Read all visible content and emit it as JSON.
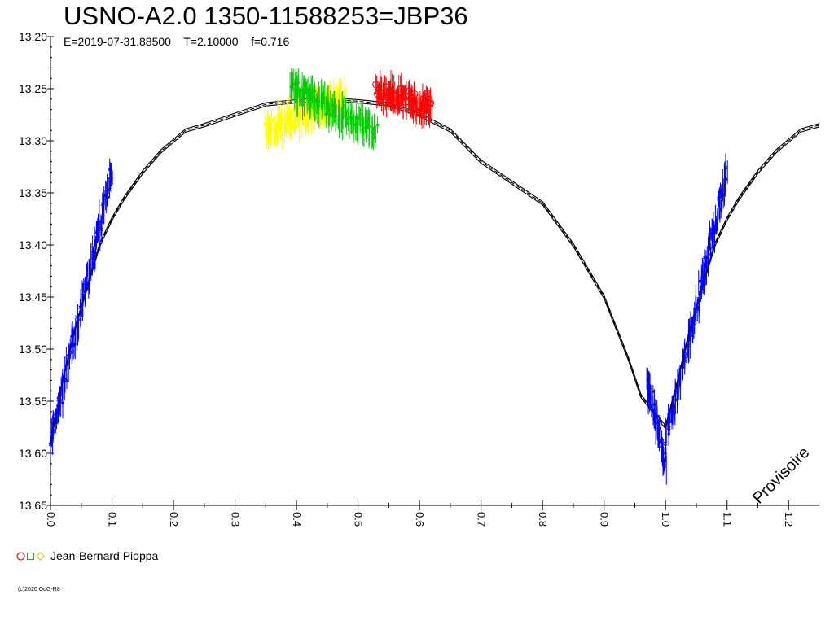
{
  "chart_data": {
    "type": "scatter",
    "title": "USNO-A2.0 1350-11588253=JBP36",
    "subtitle": "E=2019-07-31.88500    T=2.10000    f=0.716",
    "x_ticks": [
      "0.0",
      "0.1",
      "0.2",
      "0.3",
      "0.4",
      "0.5",
      "0.6",
      "0.7",
      "0.8",
      "0.9",
      "1.0",
      "1.1",
      "1.2"
    ],
    "y_ticks": [
      "13.20",
      "13.25",
      "13.30",
      "13.35",
      "13.40",
      "13.45",
      "13.50",
      "13.55",
      "13.60",
      "13.65"
    ],
    "xlim": [
      0.0,
      1.25
    ],
    "ylim": [
      13.2,
      13.65
    ],
    "y_inverted": true,
    "model_curve": {
      "x": [
        0.0,
        0.02,
        0.04,
        0.06,
        0.08,
        0.1,
        0.12,
        0.15,
        0.18,
        0.2,
        0.22,
        0.25,
        0.3,
        0.35,
        0.4,
        0.45,
        0.5,
        0.55,
        0.6,
        0.65,
        0.7,
        0.75,
        0.8,
        0.85,
        0.88,
        0.9,
        0.92,
        0.94,
        0.96,
        0.98,
        1.0,
        1.02,
        1.04,
        1.06,
        1.08,
        1.1,
        1.12,
        1.15,
        1.18,
        1.2,
        1.22,
        1.25
      ],
      "y": [
        13.59,
        13.53,
        13.48,
        13.44,
        13.4,
        13.375,
        13.355,
        13.33,
        13.31,
        13.3,
        13.29,
        13.285,
        13.275,
        13.265,
        13.262,
        13.26,
        13.262,
        13.265,
        13.275,
        13.29,
        13.32,
        13.34,
        13.36,
        13.4,
        13.43,
        13.45,
        13.48,
        13.51,
        13.545,
        13.56,
        13.575,
        13.53,
        13.48,
        13.44,
        13.4,
        13.375,
        13.355,
        13.33,
        13.31,
        13.3,
        13.29,
        13.285
      ]
    },
    "series": [
      {
        "name": "",
        "color": "#0000ff",
        "marker": "x",
        "segments": [
          [
            0.0,
            0.1,
            13.59,
            13.33
          ],
          [
            0.97,
            1.0,
            13.53,
            13.61
          ],
          [
            1.0,
            1.1,
            13.59,
            13.33
          ]
        ]
      },
      {
        "name": "",
        "color": "#ffff00",
        "marker": "diamond",
        "segments": [
          [
            0.35,
            0.48,
            13.29,
            13.26
          ]
        ]
      },
      {
        "name": "",
        "color": "#00cc00",
        "marker": "square",
        "segments": [
          [
            0.39,
            0.53,
            13.25,
            13.29
          ]
        ]
      },
      {
        "name": "",
        "color": "#ff0000",
        "marker": "circle",
        "segments": [
          [
            0.53,
            0.62,
            13.25,
            13.27
          ]
        ]
      }
    ]
  },
  "legend": {
    "symbol_colors": [
      "#ff0000",
      "#00cc00",
      "#ffff00"
    ],
    "observer": "Jean-Bernard Pioppa"
  },
  "copyright": "(c)2020 OdG-R8",
  "watermark": "Provisoire"
}
